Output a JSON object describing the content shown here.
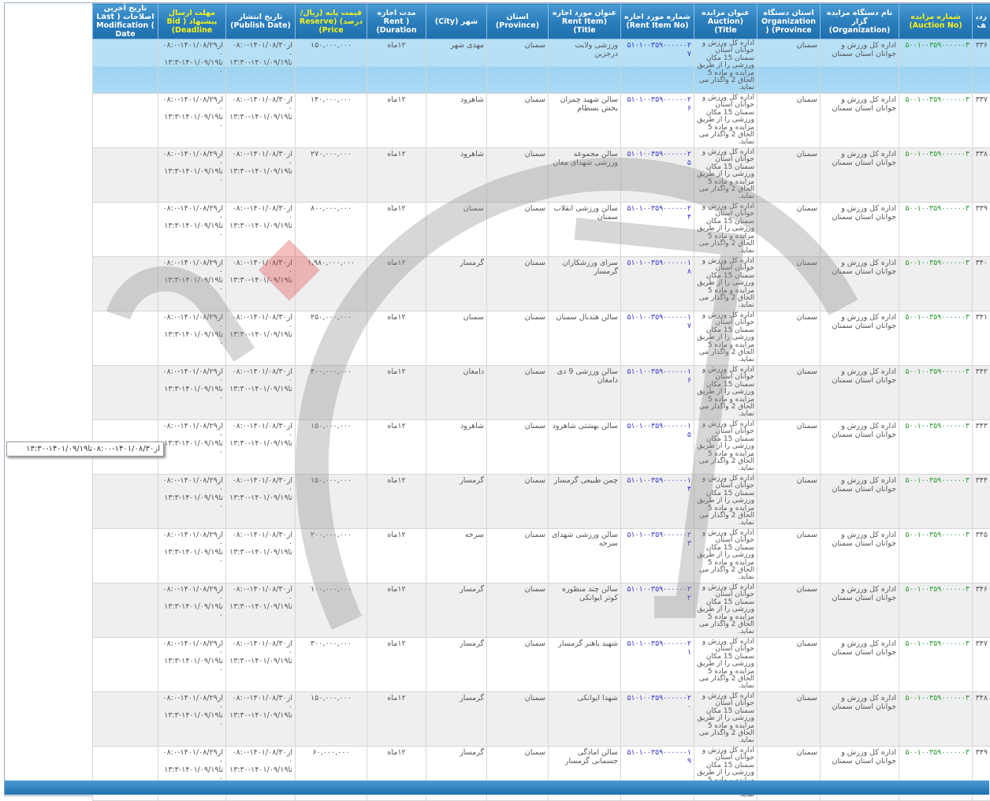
{
  "header": {
    "row_no": "ردیف",
    "auction_no": "شماره مزایده (Auction No)",
    "organization": "نام دستگاه مزایده گزار (Organization)",
    "org_province": "استان دستگاه Organization ) (Province",
    "auction_title": "عنوان مزایده (Auction Title)",
    "rent_item_no": "شماره مورد اجاره (Rent Item No)",
    "rent_item_title": "عنوان مورد اجاره (Rent Item Title)",
    "province": "استان (Province)",
    "city": "شهر (City)",
    "duration": "مدت اجاره Rent ) (Duration",
    "reserve_price": "قیمت پایه (ریال/درصد) (Reserve Price)",
    "publish_date": "تاریخ انتشار (Publish Date)",
    "deadline": "مهلت ارسال پیشنهاد ( Bid (Deadline",
    "last_modification": "تاریخ آخرین اصلاحات ( Last Modification ( Date"
  },
  "common": {
    "auction_no": "۵۰۰۱۰۰۳۵۹۰۰۰۰۰۰۳",
    "organization": "اداره کل ورزش و جوانان استان سمنان",
    "org_province": "سمنان",
    "auction_title": "اداره کل ورزش و جوانان استان سمنان 15 مکان ورزشی را از طریق مزایده و ماده 5 الحاق 2 واگذار می نماید.",
    "province": "سمنان",
    "duration": "۱۲ماه",
    "publish_date": "از۱۴۰۱/۰۸/۳۰-۰۸:۰۰ تا۱۴۰۱/۰۹/۱۹-۱۳:۳۰",
    "deadline": "از۱۴۰۱/۰۸/۲۹-۰۸:۰۰ تا۱۴۰۱/۰۹/۱۹-۱۳:۳۰"
  },
  "rows": [
    {
      "no": "۳۳۶",
      "rent_item_no": "۵۱۰۱۰۰۳۵۹۰۰۰۰۰۰۲۷",
      "rent_item_title": "ورزشی ولایت درجزین",
      "city": "مهدی شهر",
      "price": "۱۵۰,۰۰۰,۰۰۰",
      "selected": true
    },
    {
      "no": "۳۳۷",
      "rent_item_no": "۵۱۰۱۰۰۳۵۹۰۰۰۰۰۰۲۶",
      "rent_item_title": "سالن شهید چمران بخش بسطام",
      "city": "شاهرود",
      "price": "۱۴۰,۰۰۰,۰۰۰"
    },
    {
      "no": "۳۳۸",
      "rent_item_no": "۵۱۰۱۰۰۳۵۹۰۰۰۰۰۰۲۵",
      "rent_item_title": "سالن مجموعه ورزشی شهدای مغان",
      "city": "شاهرود",
      "price": "۲۷۰,۰۰۰,۰۰۰"
    },
    {
      "no": "۳۳۹",
      "rent_item_no": "۵۱۰۱۰۰۳۵۹۰۰۰۰۰۰۲۴",
      "rent_item_title": "سالن ورزشی انقلاب سمنان",
      "city": "سمنان",
      "price": "۸۰۰,۰۰۰,۰۰۰"
    },
    {
      "no": "۳۴۰",
      "rent_item_no": "۵۱۰۱۰۰۳۵۹۰۰۰۰۰۰۱۸",
      "rent_item_title": "سرای ورزشکاران گرمسار",
      "city": "گرمسار",
      "price": "۱,۹۸۰,۰۰۰,۰۰۰"
    },
    {
      "no": "۳۴۱",
      "rent_item_no": "۵۱۰۱۰۰۳۵۹۰۰۰۰۰۰۱۷",
      "rent_item_title": "سالن هندبال سمنان",
      "city": "سمنان",
      "price": "۲۵۰,۰۰۰,۰۰۰"
    },
    {
      "no": "۳۴۲",
      "rent_item_no": "۵۱۰۱۰۰۳۵۹۰۰۰۰۰۰۱۶",
      "rent_item_title": "سالن ورزشی 9 دی دامغان",
      "city": "دامغان",
      "price": "۴۰۰,۰۰۰,۰۰۰"
    },
    {
      "no": "۳۴۳",
      "rent_item_no": "۵۱۰۱۰۰۳۵۹۰۰۰۰۰۰۱۵",
      "rent_item_title": "سالن بهشتی شاهرود",
      "city": "شاهرود",
      "price": "۱۵۰,۰۰۰,۰۰۰"
    },
    {
      "no": "۳۴۴",
      "rent_item_no": "۵۱۰۱۰۰۳۵۹۰۰۰۰۰۰۱۴",
      "rent_item_title": "چمن طبیعی گرمسار",
      "city": "گرمسار",
      "price": "۱۵۰,۰۰۰,۰۰۰"
    },
    {
      "no": "۳۴۵",
      "rent_item_no": "۵۱۰۱۰۰۳۵۹۰۰۰۰۰۰۲۳",
      "rent_item_title": "سالن ورزشی شهدای سرخه",
      "city": "سرخه",
      "price": "۲۰۰,۰۰۰,۰۰۰"
    },
    {
      "no": "۳۴۶",
      "rent_item_no": "۵۱۰۱۰۰۳۵۹۰۰۰۰۰۰۲۲",
      "rent_item_title": "سالن چند منظوره کوثر ایوانکی",
      "city": "گرمسار",
      "price": "۱۰۰,۰۰۰,۰۰۰"
    },
    {
      "no": "۳۴۷",
      "rent_item_no": "۵۱۰۱۰۰۳۵۹۰۰۰۰۰۰۲۱",
      "rent_item_title": "شهید باهنر گرمسار",
      "city": "گرمسار",
      "price": "۳۰۰,۰۰۰,۰۰۰"
    },
    {
      "no": "۳۴۸",
      "rent_item_no": "۵۱۰۱۰۰۳۵۹۰۰۰۰۰۰۲۰",
      "rent_item_title": "شهدا ایوانکی",
      "city": "گرمسار",
      "price": "۱۵۰,۰۰۰,۰۰۰"
    },
    {
      "no": "۳۴۹",
      "rent_item_no": "۵۱۰۱۰۰۳۵۹۰۰۰۰۰۰۱۹",
      "rent_item_title": "سالن امادگی جسمانی گرمسار",
      "city": "گرمسار",
      "price": "۶۰,۰۰۰,۰۰۰"
    }
  ],
  "tooltip": "از۱۴۰۱/۰۸/۳۰-۰۸:۰۰تا۱۴۰۱/۰۹/۱۹-۱۳:۳۰",
  "watermark": "ارتباط گستر هزاره",
  "colors": {
    "header": "#2a7dbc",
    "sort_header_text": "#f2f21a",
    "selected_row": "#b6e0f6",
    "auction_no": "#2a9a2a",
    "rent_item_no": "#3b3bd0"
  }
}
